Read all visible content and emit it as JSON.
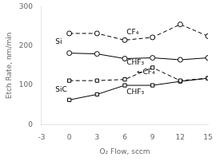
{
  "chart_data": {
    "type": "line",
    "x": [
      0,
      3,
      6,
      9,
      12,
      15
    ],
    "series": [
      {
        "color": "#000000",
        "marker": "circle",
        "line_style": "dashed",
        "values": [
          232,
          232,
          215,
          222,
          255,
          225
        ]
      },
      {
        "color": "#000000",
        "marker": "circle",
        "line_style": "solid",
        "values": [
          182,
          180,
          168,
          170,
          165,
          170
        ]
      },
      {
        "color": "#000000",
        "marker": "square",
        "line_style": "dashed",
        "values": [
          112,
          112,
          115,
          145,
          112,
          118
        ]
      },
      {
        "color": "#000000",
        "marker": "square",
        "line_style": "solid",
        "values": [
          63,
          77,
          100,
          100,
          110,
          118
        ]
      }
    ],
    "xlabel": "O₂ Flow, sccm",
    "ylabel": "Etch Rate, nm/min",
    "xlim": [
      -3,
      15
    ],
    "xticks": [
      -3,
      0,
      3,
      6,
      9,
      12,
      15
    ],
    "ylim": [
      0,
      300
    ],
    "yticks": [
      0,
      100,
      200,
      300
    ],
    "grid": false,
    "annotations": [
      {
        "text": "CF₄",
        "x": 6.2,
        "y": 235
      },
      {
        "text": "CHF₃",
        "x": 6.2,
        "y": 157
      },
      {
        "text": "←CF₄",
        "x": 7.3,
        "y": 133
      },
      {
        "text": "CHF₃",
        "x": 6.2,
        "y": 82
      },
      {
        "text": "Si",
        "x": -1.5,
        "y": 210
      },
      {
        "text": "SiC",
        "x": -1.5,
        "y": 88
      }
    ]
  }
}
